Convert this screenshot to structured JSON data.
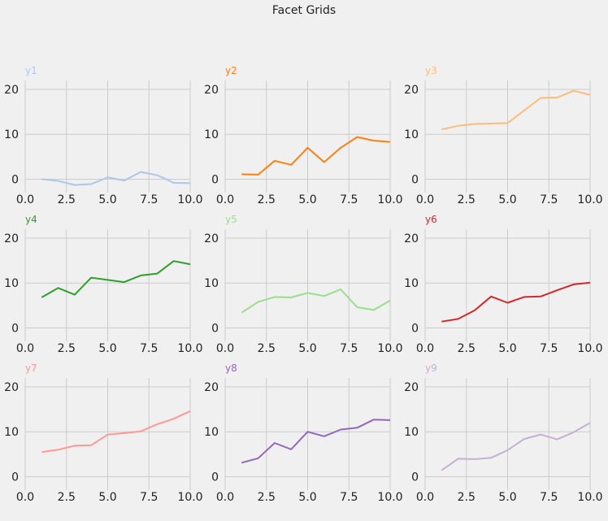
{
  "title": "Facet Grids",
  "chart_data": {
    "type": "line",
    "title": "Facet Grids",
    "layout": "3x3 facet grid",
    "grid": true,
    "xlim": [
      0,
      10
    ],
    "ylim": [
      -3,
      22
    ],
    "xticks": [
      "0.0",
      "2.5",
      "5.0",
      "7.5",
      "10.0"
    ],
    "yticks": [
      "0",
      "10",
      "20"
    ],
    "x": [
      1,
      2,
      3,
      4,
      5,
      6,
      7,
      8,
      9,
      10
    ],
    "series": [
      {
        "name": "y1",
        "color": "#aec7e8",
        "values": [
          0.0,
          -0.4,
          -1.3,
          -1.1,
          0.4,
          -0.3,
          1.6,
          0.9,
          -0.8,
          -0.9
        ]
      },
      {
        "name": "y2",
        "color": "#ff7f0e",
        "values": [
          1.1,
          1.0,
          4.1,
          3.2,
          7.0,
          3.8,
          7.0,
          9.4,
          8.6,
          8.3
        ]
      },
      {
        "name": "y3",
        "color": "#ffbb78",
        "values": [
          11.1,
          11.9,
          12.3,
          12.4,
          12.5,
          15.3,
          18.1,
          18.2,
          19.7,
          18.8
        ]
      },
      {
        "name": "y4",
        "color": "#2ca02c",
        "values": [
          6.8,
          8.9,
          7.4,
          11.2,
          10.7,
          10.2,
          11.7,
          12.1,
          14.9,
          14.2
        ]
      },
      {
        "name": "y5",
        "color": "#98df8a",
        "values": [
          3.4,
          5.8,
          6.9,
          6.8,
          7.8,
          7.1,
          8.6,
          4.6,
          4.0,
          6.1
        ]
      },
      {
        "name": "y6",
        "color": "#d62728",
        "values": [
          1.4,
          2.0,
          3.9,
          7.0,
          5.6,
          6.9,
          7.0,
          8.4,
          9.7,
          10.1
        ]
      },
      {
        "name": "y7",
        "color": "#ff9896",
        "values": [
          5.5,
          6.0,
          6.9,
          7.0,
          9.4,
          9.7,
          10.1,
          11.7,
          12.9,
          14.6
        ]
      },
      {
        "name": "y8",
        "color": "#9467bd",
        "values": [
          3.1,
          4.1,
          7.5,
          6.1,
          10.0,
          9.0,
          10.5,
          10.9,
          12.7,
          12.6
        ]
      },
      {
        "name": "y9",
        "color": "#c5b0d5",
        "values": [
          1.4,
          4.0,
          3.9,
          4.2,
          5.9,
          8.4,
          9.4,
          8.3,
          9.9,
          12.0
        ]
      }
    ]
  }
}
